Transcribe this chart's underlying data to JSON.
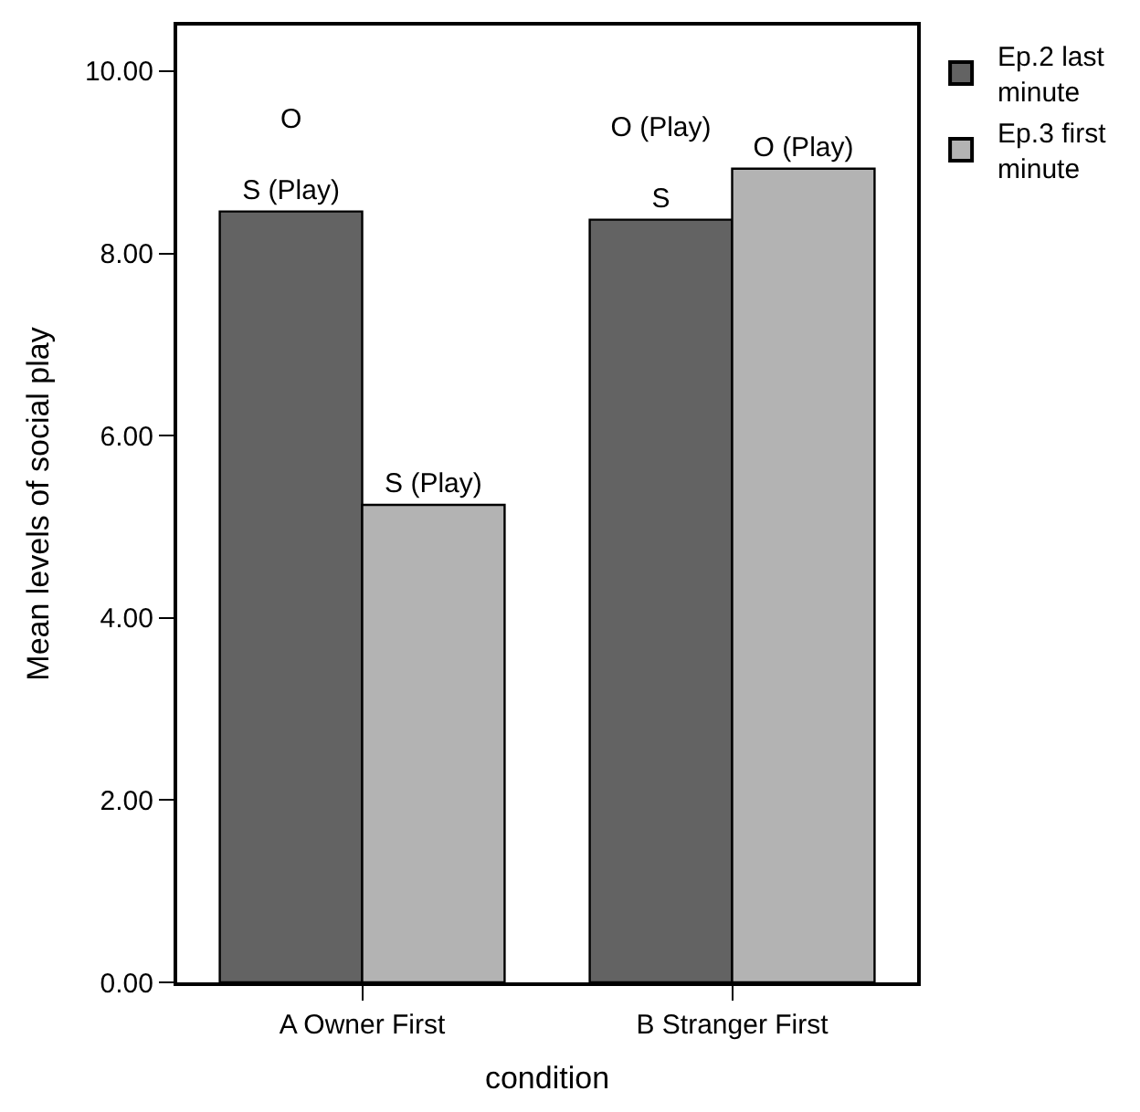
{
  "chart_data": {
    "type": "bar",
    "xlabel": "condition",
    "ylabel": "Mean levels of social play",
    "categories": [
      "A Owner First",
      "B Stranger First"
    ],
    "series": [
      {
        "name": "Ep.2 last minute",
        "color": "#636363",
        "values": [
          8.46,
          8.37
        ],
        "value_labels": [
          "O\n\nS (Play)",
          "O (Play)\n\nS"
        ]
      },
      {
        "name": "Ep.3 first minute",
        "color": "#b3b3b3",
        "values": [
          5.24,
          8.93
        ],
        "value_labels": [
          "S (Play)",
          "O (Play)"
        ]
      }
    ],
    "ylim": [
      0,
      10.5
    ],
    "yticks": [
      {
        "value": 0,
        "label": "0.00"
      },
      {
        "value": 2,
        "label": "2.00"
      },
      {
        "value": 4,
        "label": "4.00"
      },
      {
        "value": 6,
        "label": "6.00"
      },
      {
        "value": 8,
        "label": "8.00"
      },
      {
        "value": 10,
        "label": "10.00"
      }
    ],
    "legend": "top right"
  }
}
